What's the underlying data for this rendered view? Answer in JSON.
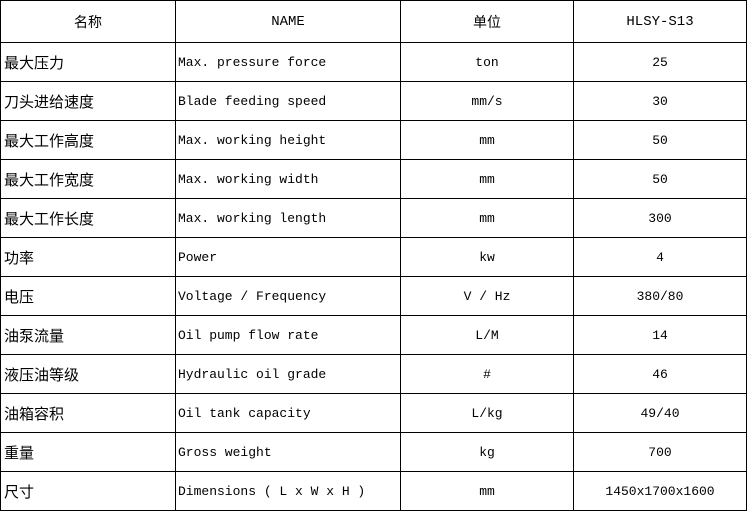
{
  "header": {
    "name_cn": "名称",
    "name_en": "NAME",
    "unit": "单位",
    "model": "HLSY-S13"
  },
  "rows": [
    {
      "cn": "最大压力",
      "en": "Max. pressure force",
      "unit": "ton",
      "value": "25"
    },
    {
      "cn": "刀头进给速度",
      "en": "Blade feeding speed",
      "unit": "mm/s",
      "value": "30"
    },
    {
      "cn": "最大工作高度",
      "en": "Max. working height",
      "unit": "mm",
      "value": "50"
    },
    {
      "cn": "最大工作宽度",
      "en": "Max. working width",
      "unit": "mm",
      "value": "50"
    },
    {
      "cn": "最大工作长度",
      "en": "Max. working length",
      "unit": "mm",
      "value": "300"
    },
    {
      "cn": "功率",
      "en": "Power",
      "unit": "kw",
      "value": "4"
    },
    {
      "cn": "电压",
      "en": "Voltage / Frequency",
      "unit": "V / Hz",
      "value": "380/80"
    },
    {
      "cn": "油泵流量",
      "en": "Oil pump flow rate",
      "unit": "L/M",
      "value": "14"
    },
    {
      "cn": "液压油等级",
      "en": "Hydraulic oil grade",
      "unit": "#",
      "value": "46"
    },
    {
      "cn": "油箱容积",
      "en": "Oil tank capacity",
      "unit": "L/kg",
      "value": "49/40"
    },
    {
      "cn": "重量",
      "en": "Gross weight",
      "unit": "kg",
      "value": "700"
    },
    {
      "cn": "尺寸",
      "en": "Dimensions ( L x W x H )",
      "unit": "mm",
      "value": "1450x1700x1600"
    }
  ]
}
